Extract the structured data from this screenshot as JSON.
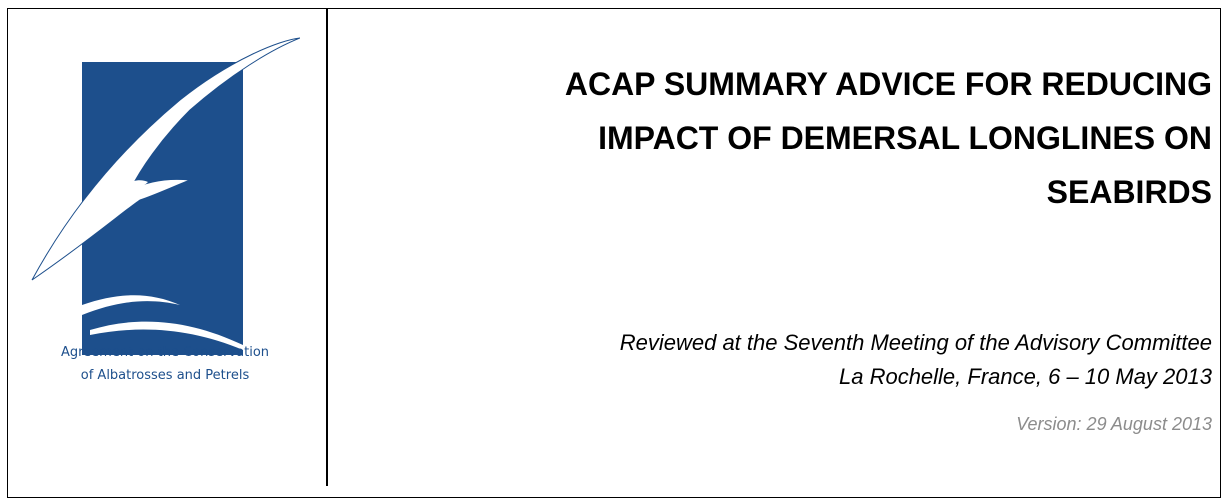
{
  "logo": {
    "caption": [
      "Agreement on the Conservation",
      "of Albatrosses and Petrels"
    ]
  },
  "header": {
    "title": [
      "ACAP SUMMARY ADVICE FOR REDUCING",
      "IMPACT OF DEMERSAL LONGLINES ON",
      "SEABIRDS"
    ],
    "meeting": [
      "Reviewed at the Seventh Meeting of the Advisory Committee",
      "La Rochelle, France, 6 – 10 May 2013"
    ],
    "version": "Version: 29 August 2013"
  }
}
